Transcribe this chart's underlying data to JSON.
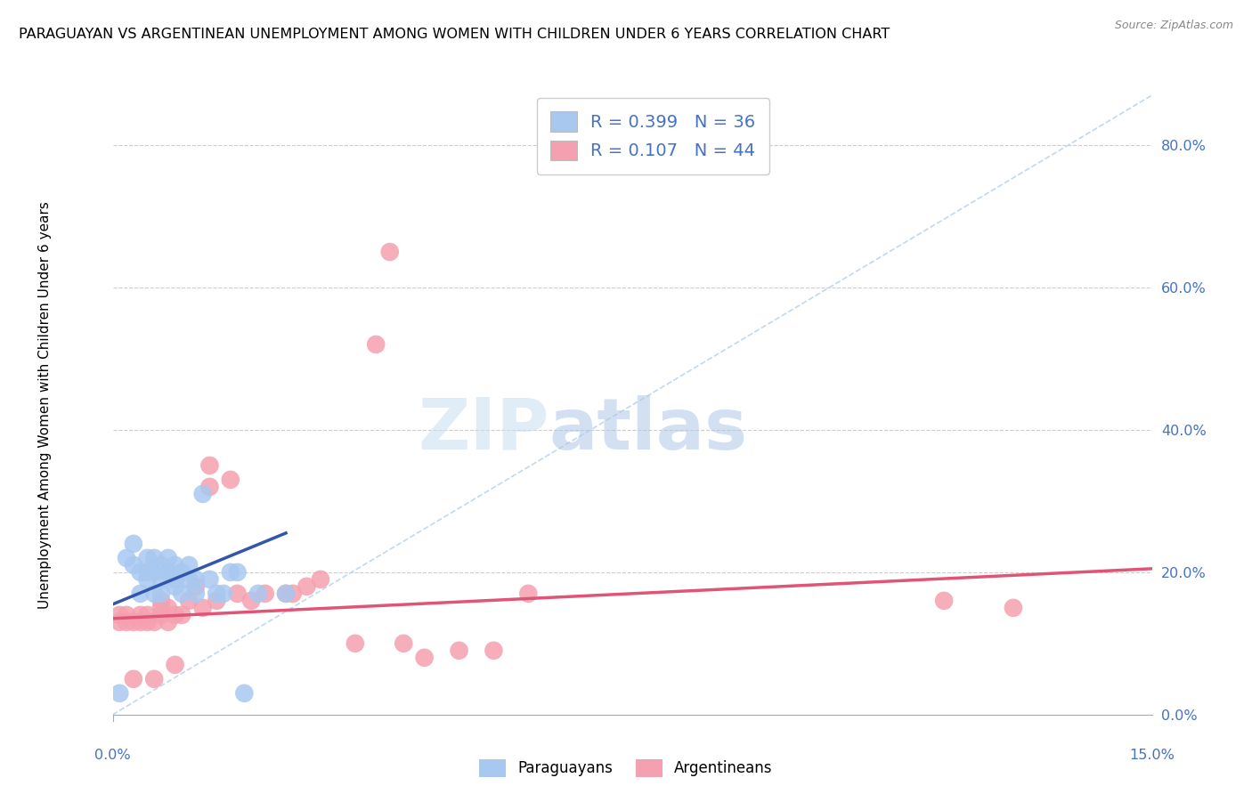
{
  "title": "PARAGUAYAN VS ARGENTINEAN UNEMPLOYMENT AMONG WOMEN WITH CHILDREN UNDER 6 YEARS CORRELATION CHART",
  "source": "Source: ZipAtlas.com",
  "ylabel": "Unemployment Among Women with Children Under 6 years",
  "right_yticks": [
    "0.0%",
    "20.0%",
    "40.0%",
    "60.0%",
    "80.0%"
  ],
  "right_ytick_vals": [
    0.0,
    0.2,
    0.4,
    0.6,
    0.8
  ],
  "xmin": 0.0,
  "xmax": 0.15,
  "ymin": 0.0,
  "ymax": 0.87,
  "paraguayan_color": "#a8c8f0",
  "argentinean_color": "#f5a0b0",
  "paraguayan_R": 0.399,
  "paraguayan_N": 36,
  "argentinean_R": 0.107,
  "argentinean_N": 44,
  "legend_text_color": "#4472c4",
  "watermark_zip": "ZIP",
  "watermark_atlas": "atlas",
  "paraguayan_x": [
    0.001,
    0.002,
    0.003,
    0.003,
    0.004,
    0.004,
    0.005,
    0.005,
    0.005,
    0.006,
    0.006,
    0.006,
    0.007,
    0.007,
    0.007,
    0.008,
    0.008,
    0.008,
    0.009,
    0.009,
    0.009,
    0.01,
    0.01,
    0.011,
    0.011,
    0.012,
    0.012,
    0.013,
    0.014,
    0.015,
    0.016,
    0.017,
    0.018,
    0.019,
    0.021,
    0.025
  ],
  "paraguayan_y": [
    0.03,
    0.22,
    0.24,
    0.21,
    0.2,
    0.17,
    0.2,
    0.19,
    0.22,
    0.2,
    0.22,
    0.17,
    0.21,
    0.19,
    0.17,
    0.2,
    0.22,
    0.2,
    0.19,
    0.21,
    0.18,
    0.2,
    0.17,
    0.19,
    0.21,
    0.17,
    0.19,
    0.31,
    0.19,
    0.17,
    0.17,
    0.2,
    0.2,
    0.03,
    0.17,
    0.17
  ],
  "argentinean_x": [
    0.001,
    0.001,
    0.002,
    0.002,
    0.003,
    0.003,
    0.004,
    0.004,
    0.005,
    0.005,
    0.006,
    0.006,
    0.007,
    0.007,
    0.007,
    0.008,
    0.008,
    0.009,
    0.009,
    0.01,
    0.011,
    0.012,
    0.013,
    0.014,
    0.014,
    0.015,
    0.017,
    0.018,
    0.02,
    0.022,
    0.025,
    0.026,
    0.028,
    0.03,
    0.035,
    0.038,
    0.04,
    0.042,
    0.045,
    0.05,
    0.055,
    0.06,
    0.12,
    0.13
  ],
  "argentinean_y": [
    0.14,
    0.13,
    0.14,
    0.13,
    0.13,
    0.05,
    0.14,
    0.13,
    0.14,
    0.13,
    0.13,
    0.05,
    0.14,
    0.15,
    0.16,
    0.13,
    0.15,
    0.14,
    0.07,
    0.14,
    0.16,
    0.18,
    0.15,
    0.32,
    0.35,
    0.16,
    0.33,
    0.17,
    0.16,
    0.17,
    0.17,
    0.17,
    0.18,
    0.19,
    0.1,
    0.52,
    0.65,
    0.1,
    0.08,
    0.09,
    0.09,
    0.17,
    0.16,
    0.15
  ],
  "diagonal_line_color": "#c0d8f0",
  "blue_trend_color": "#3355aa",
  "pink_trend_color": "#e05575",
  "blue_trend_x": [
    0.0,
    0.025
  ],
  "blue_trend_y": [
    0.155,
    0.255
  ],
  "pink_trend_x": [
    0.0,
    0.15
  ],
  "pink_trend_y": [
    0.135,
    0.205
  ]
}
